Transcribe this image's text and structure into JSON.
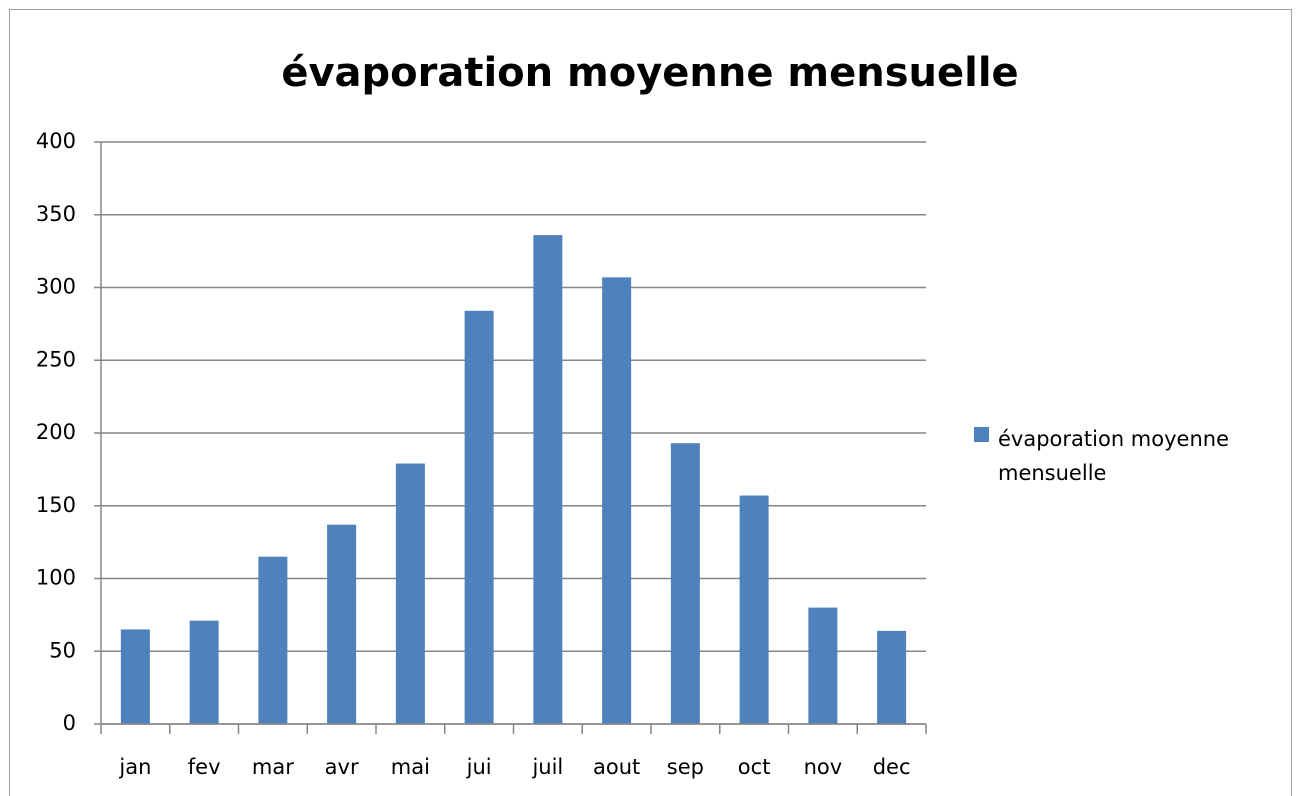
{
  "chart_data": {
    "type": "bar",
    "title": "évaporation moyenne mensuelle",
    "categories": [
      "jan",
      "fev",
      "mar",
      "avr",
      "mai",
      "jui",
      "juil",
      "aout",
      "sep",
      "oct",
      "nov",
      "dec"
    ],
    "series": [
      {
        "name": "évaporation moyenne mensuelle",
        "color": "#4f81bd",
        "values": [
          65,
          71,
          115,
          137,
          179,
          284,
          336,
          307,
          193,
          157,
          80,
          64
        ]
      }
    ],
    "ylim": [
      0,
      400
    ],
    "yticks": [
      0,
      50,
      100,
      150,
      200,
      250,
      300,
      350,
      400
    ],
    "grid": true,
    "legend": "right"
  }
}
